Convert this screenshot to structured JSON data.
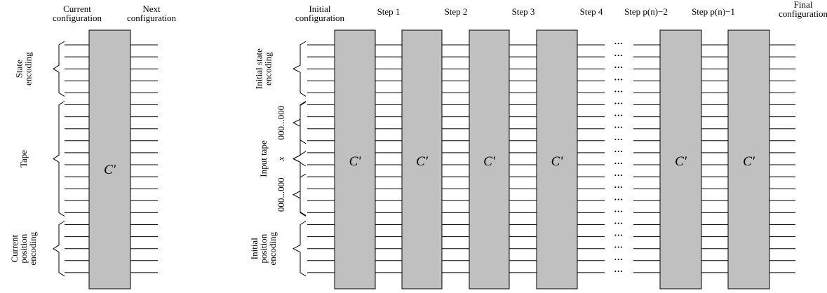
{
  "colors": {
    "block_fill": "#c0c0c0",
    "stroke": "#000000",
    "background": "#ffffff"
  },
  "left_diagram": {
    "header_current": [
      "Current",
      "configuration"
    ],
    "header_next": [
      "Next",
      "configuration"
    ],
    "block_label": "C'",
    "groups": [
      {
        "lines": [
          "State",
          "encoding"
        ],
        "wires": 5
      },
      {
        "lines": [
          "Tape"
        ],
        "wires": 10
      },
      {
        "lines": [
          "Current",
          "position",
          "encoding"
        ],
        "wires": 5
      }
    ]
  },
  "right_diagram": {
    "headers": [
      [
        "Initial",
        "configuration"
      ],
      [
        "Step 1"
      ],
      [
        "Step 2"
      ],
      [
        "Step 3"
      ],
      [
        "Step 4"
      ],
      [
        "Step p(n)−2"
      ],
      [
        "Step p(n)−1"
      ],
      [
        "Final",
        "configuration"
      ]
    ],
    "block_labels": [
      "C'",
      "C'",
      "C'",
      "C'",
      "C'",
      "C'"
    ],
    "dots": "…",
    "groups": [
      {
        "lines": [
          "Initial state",
          "encoding"
        ],
        "wires": 5
      },
      {
        "lines": [
          "Input tape"
        ],
        "wires": 10
      },
      {
        "lines": [
          "Initial",
          "position",
          "encoding"
        ],
        "wires": 5
      }
    ],
    "input_subgroups": [
      {
        "text": "000...000",
        "italic": false,
        "wires": 4
      },
      {
        "text": "x",
        "italic": true,
        "wires": 2
      },
      {
        "text": "000...000",
        "italic": false,
        "wires": 4
      }
    ]
  }
}
